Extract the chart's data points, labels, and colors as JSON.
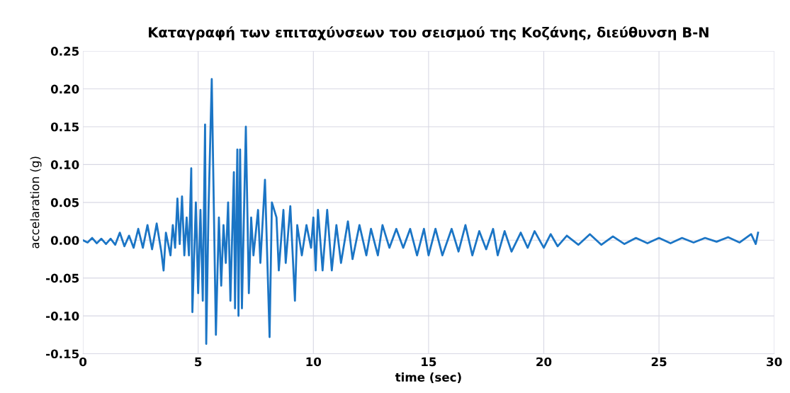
{
  "chart_data": {
    "type": "line",
    "title": "Καταγραφή των επιταχύνσεων του σεισμού της Κοζάνης, διεύθυνση Β-Ν",
    "xlabel": "time (sec)",
    "ylabel": "accelaration (g)",
    "xlim": [
      0,
      30
    ],
    "xticks": [
      0,
      5,
      10,
      15,
      20,
      25,
      30
    ],
    "ylim": [
      -0.15,
      0.25
    ],
    "yticks": [
      {
        "value": -0.15,
        "label": "-0.15"
      },
      {
        "value": -0.1,
        "label": "-0.10"
      },
      {
        "value": -0.05,
        "label": "-0.05"
      },
      {
        "value": 0,
        "label": "0.00"
      },
      {
        "value": 0.05,
        "label": "0.05"
      },
      {
        "value": 0.1,
        "label": "0.10"
      },
      {
        "value": 0.15,
        "label": "0.15"
      },
      {
        "value": 0.2,
        "label": "0.20"
      },
      {
        "value": 0.25,
        "label": "0.25"
      }
    ],
    "grid": true,
    "legend": false,
    "marker": "none",
    "line_style": "solid",
    "series": [
      {
        "color": "#1b75c5",
        "x": [
          0,
          0.2,
          0.4,
          0.6,
          0.8,
          1.0,
          1.2,
          1.4,
          1.6,
          1.8,
          2.0,
          2.2,
          2.4,
          2.6,
          2.8,
          3.0,
          3.2,
          3.4,
          3.5,
          3.6,
          3.8,
          3.9,
          4.0,
          4.1,
          4.2,
          4.3,
          4.4,
          4.5,
          4.6,
          4.7,
          4.75,
          4.9,
          5.0,
          5.1,
          5.2,
          5.3,
          5.35,
          5.45,
          5.59,
          5.77,
          5.9,
          6.0,
          6.1,
          6.2,
          6.3,
          6.4,
          6.55,
          6.6,
          6.7,
          6.75,
          6.82,
          6.9,
          7.07,
          7.2,
          7.3,
          7.4,
          7.5,
          7.6,
          7.7,
          7.9,
          8.1,
          8.2,
          8.4,
          8.5,
          8.7,
          8.8,
          9.0,
          9.2,
          9.3,
          9.5,
          9.7,
          9.9,
          10.0,
          10.1,
          10.2,
          10.4,
          10.6,
          10.8,
          11.0,
          11.2,
          11.5,
          11.7,
          12.0,
          12.3,
          12.5,
          12.8,
          13.0,
          13.3,
          13.6,
          13.9,
          14.2,
          14.5,
          14.8,
          15.0,
          15.3,
          15.6,
          16.0,
          16.3,
          16.6,
          16.9,
          17.2,
          17.5,
          17.8,
          18.0,
          18.3,
          18.6,
          19.0,
          19.3,
          19.6,
          20.0,
          20.3,
          20.6,
          21.0,
          21.5,
          22.0,
          22.5,
          23.0,
          23.5,
          24.0,
          24.5,
          25.0,
          25.5,
          26.0,
          26.5,
          27.0,
          27.5,
          28.0,
          28.5,
          29.0,
          29.2,
          29.3
        ],
        "values": [
          0.0,
          -0.003,
          0.003,
          -0.004,
          0.002,
          -0.005,
          0.002,
          -0.006,
          0.01,
          -0.008,
          0.006,
          -0.01,
          0.015,
          -0.01,
          0.02,
          -0.012,
          0.022,
          -0.015,
          -0.04,
          0.01,
          -0.02,
          0.02,
          -0.01,
          0.055,
          -0.005,
          0.058,
          -0.02,
          0.03,
          -0.02,
          0.095,
          -0.095,
          0.05,
          -0.07,
          0.04,
          -0.08,
          0.153,
          -0.137,
          0.04,
          0.213,
          -0.125,
          0.03,
          -0.06,
          0.02,
          -0.03,
          0.05,
          -0.08,
          0.09,
          -0.09,
          0.12,
          -0.1,
          0.12,
          -0.09,
          0.15,
          -0.07,
          0.03,
          -0.02,
          0.01,
          0.04,
          -0.03,
          0.08,
          -0.128,
          0.05,
          0.03,
          -0.04,
          0.04,
          -0.03,
          0.045,
          -0.08,
          0.02,
          -0.02,
          0.02,
          -0.01,
          0.03,
          -0.04,
          0.04,
          -0.04,
          0.04,
          -0.04,
          0.02,
          -0.03,
          0.025,
          -0.025,
          0.02,
          -0.02,
          0.015,
          -0.02,
          0.02,
          -0.01,
          0.015,
          -0.01,
          0.015,
          -0.02,
          0.015,
          -0.02,
          0.015,
          -0.02,
          0.015,
          -0.015,
          0.02,
          -0.02,
          0.012,
          -0.012,
          0.015,
          -0.02,
          0.012,
          -0.015,
          0.01,
          -0.01,
          0.012,
          -0.01,
          0.008,
          -0.008,
          0.006,
          -0.006,
          0.008,
          -0.006,
          0.005,
          -0.005,
          0.003,
          -0.004,
          0.003,
          -0.004,
          0.003,
          -0.003,
          0.003,
          -0.002,
          0.004,
          -0.003,
          0.008,
          -0.005,
          0.01
        ]
      }
    ]
  }
}
